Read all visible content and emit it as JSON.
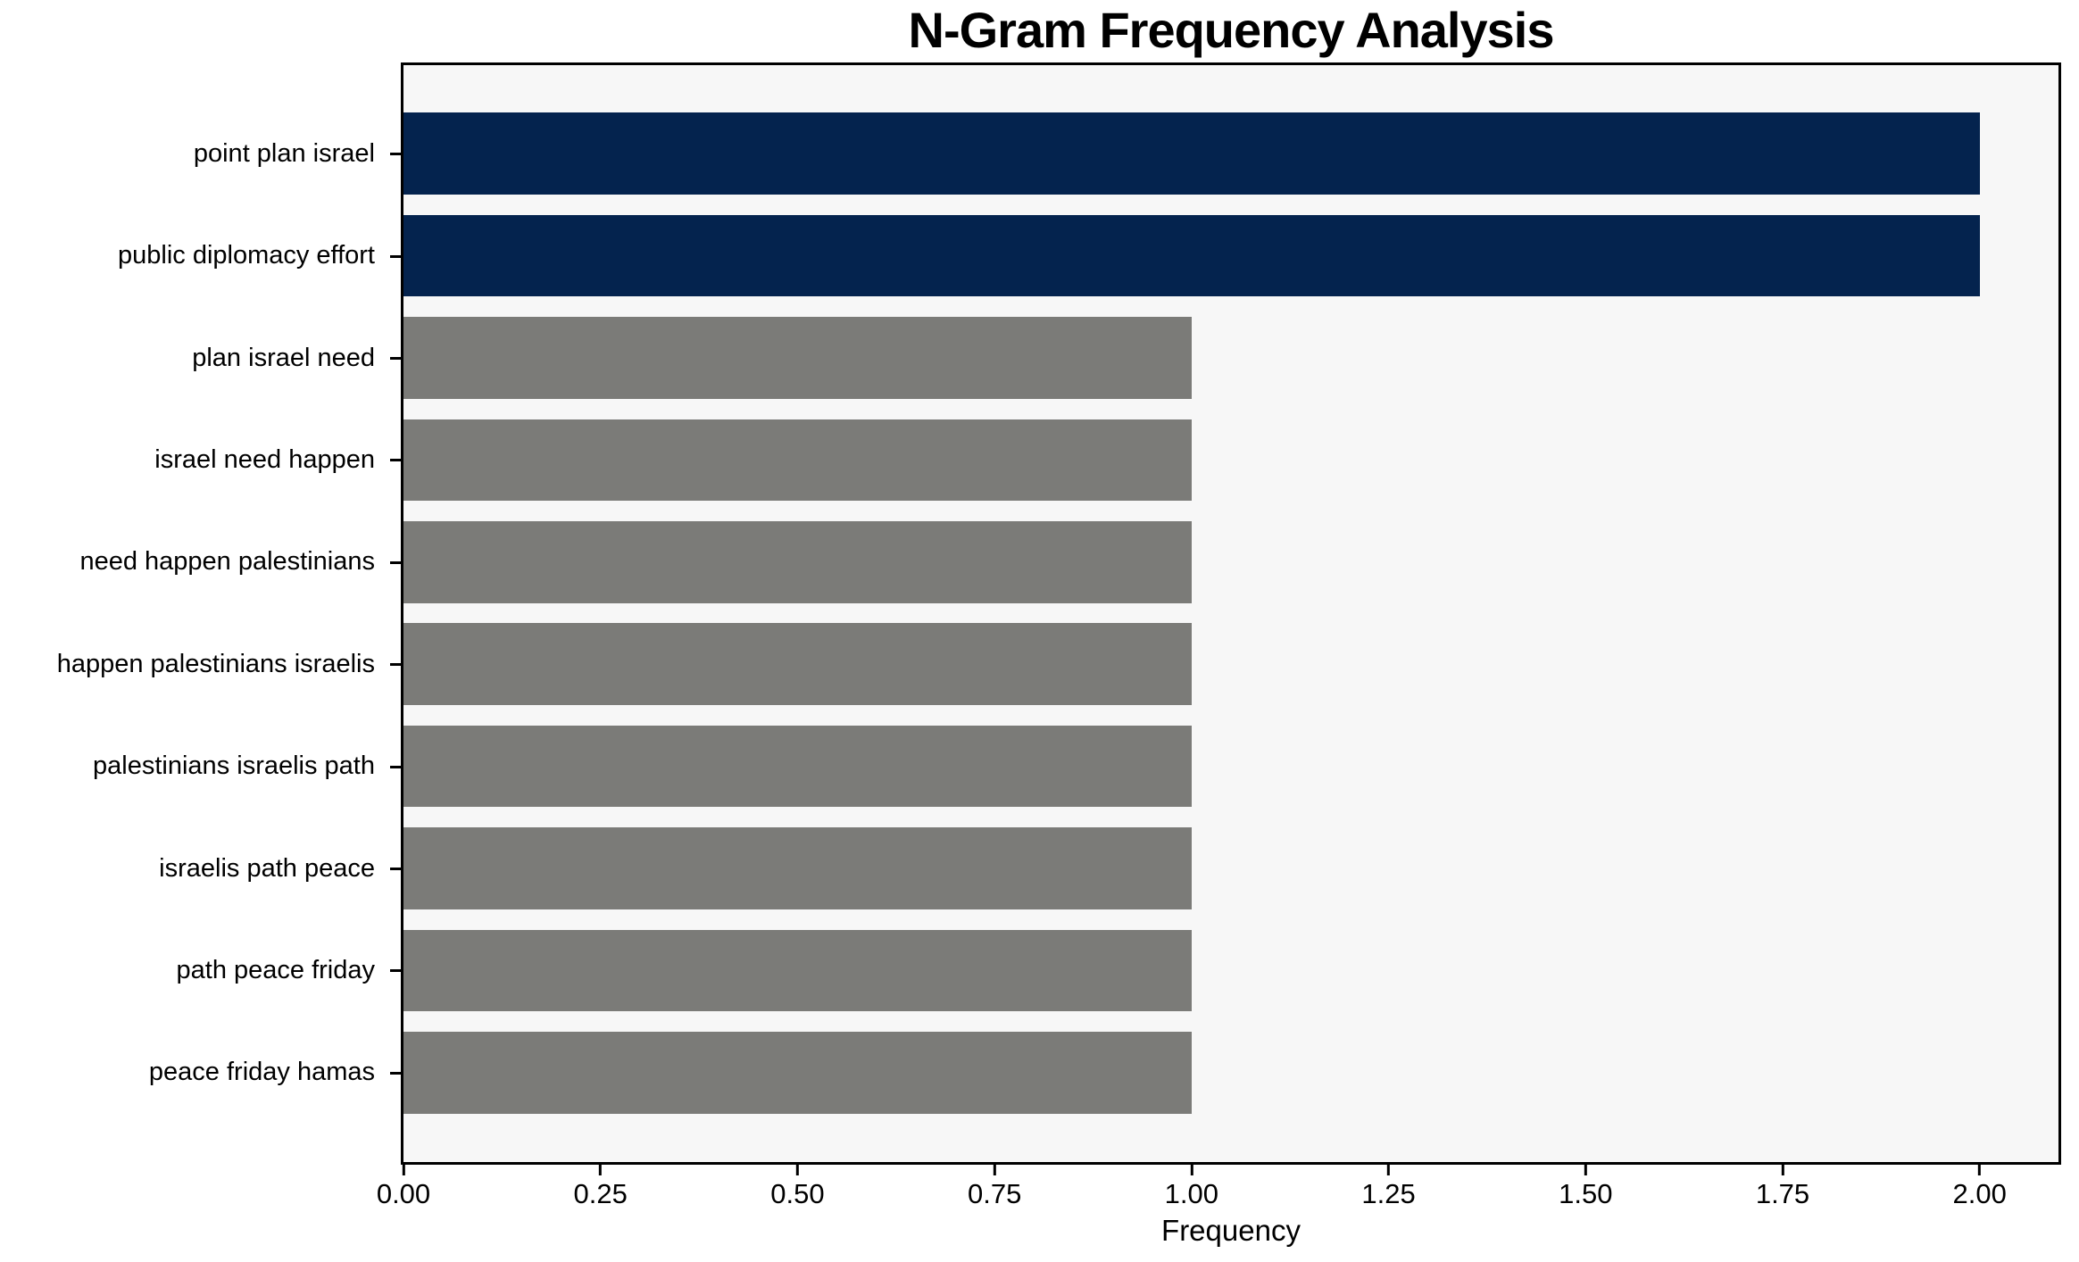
{
  "chart_data": {
    "type": "bar",
    "orientation": "horizontal",
    "title": "N-Gram Frequency Analysis",
    "xlabel": "Frequency",
    "ylabel": "",
    "categories": [
      "point plan israel",
      "public diplomacy effort",
      "plan israel need",
      "israel need happen",
      "need happen palestinians",
      "happen palestinians israelis",
      "palestinians israelis path",
      "israelis path peace",
      "path peace friday",
      "peace friday hamas"
    ],
    "values": [
      2,
      2,
      1,
      1,
      1,
      1,
      1,
      1,
      1,
      1
    ],
    "bar_colors": [
      "#04234e",
      "#04234e",
      "#7b7b78",
      "#7b7b78",
      "#7b7b78",
      "#7b7b78",
      "#7b7b78",
      "#7b7b78",
      "#7b7b78",
      "#7b7b78"
    ],
    "xlim": [
      0,
      2.1
    ],
    "xticks": {
      "values": [
        0,
        0.25,
        0.5,
        0.75,
        1.0,
        1.25,
        1.5,
        1.75,
        2.0
      ],
      "labels": [
        "0.00",
        "0.25",
        "0.50",
        "0.75",
        "1.00",
        "1.25",
        "1.50",
        "1.75",
        "2.00"
      ]
    },
    "grid": false,
    "legend": null,
    "colors": {
      "highlight_bar": "#04234e",
      "default_bar": "#7b7b78",
      "plot_background": "#f7f7f7",
      "figure_background": "#ffffff",
      "axis": "#000000",
      "text": "#000000"
    }
  }
}
